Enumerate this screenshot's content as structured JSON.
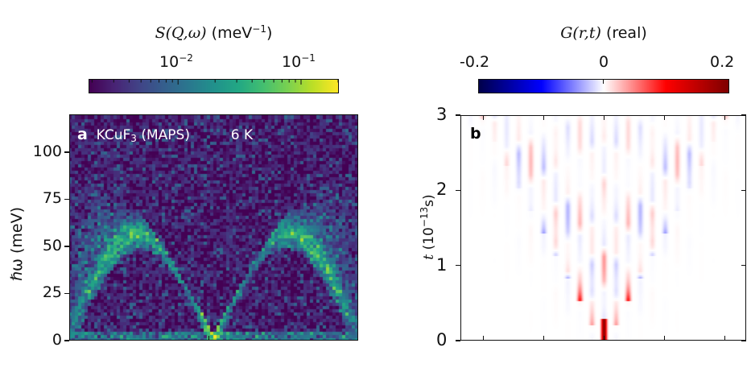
{
  "chart_data": [
    {
      "type": "heatmap",
      "panel_label": "a",
      "annotation": {
        "sample": "KCuF",
        "sample_subscript": "3",
        "instrument": "(MAPS)",
        "temperature": "6 K"
      },
      "colorbar": {
        "label_func": "S(Q,ω)",
        "label_unit": "(meV",
        "label_unit_exp": "−1",
        "label_close": ")",
        "scale": "log",
        "colormap": "viridis",
        "range": [
          0.0019,
          0.2
        ],
        "ticks": [
          {
            "base": "10",
            "exp": "−2",
            "value": 0.01
          },
          {
            "base": "10",
            "exp": "−1",
            "value": 0.1
          }
        ]
      },
      "ylabel": "ℏω (meV)",
      "ylim": [
        0,
        120
      ],
      "yticks": [
        "0",
        "25",
        "50",
        "75",
        "100"
      ],
      "xlabel": "",
      "xticks": [],
      "description": "Inelastic neutron scattering spectrum showing two-spinon continuum; lower boundary (des Cloizeaux-Pearson) peaks near 55 meV at Q=±0.5, gapless at Q=0, upper boundary up to ~90 meV",
      "model": {
        "lower_boundary_max_meV": 55,
        "upper_boundary_max_meV": 90,
        "zero_position": 0.5,
        "elastic_line_meV": 3
      }
    },
    {
      "type": "heatmap",
      "panel_label": "b",
      "colorbar": {
        "label_func": "G(r,t)",
        "label_note": "(real)",
        "scale": "linear",
        "colormap": "seismic",
        "range": [
          -0.2,
          0.2
        ],
        "ticks": [
          {
            "label": "-0.2",
            "value": -0.2
          },
          {
            "label": "0",
            "value": 0
          },
          {
            "label": "0.2",
            "value": 0.2
          }
        ]
      },
      "ylabel_var": "t",
      "ylabel_unit_base": "(10",
      "ylabel_unit_exp": "−13",
      "ylabel_unit_tail": "s)",
      "ylim": [
        0,
        3
      ],
      "yticks": [
        "0",
        "1",
        "2",
        "3"
      ],
      "xticks_count": 5,
      "description": "Real-space real-time correlation function; alternating-sign stripes spreading in a light cone from r=0, t=0 with strongest values (±0.2) near origin",
      "model": {
        "site_count": 23,
        "center_value": 0.2,
        "light_cone_sites_per_unit_t": 3.3
      }
    }
  ]
}
